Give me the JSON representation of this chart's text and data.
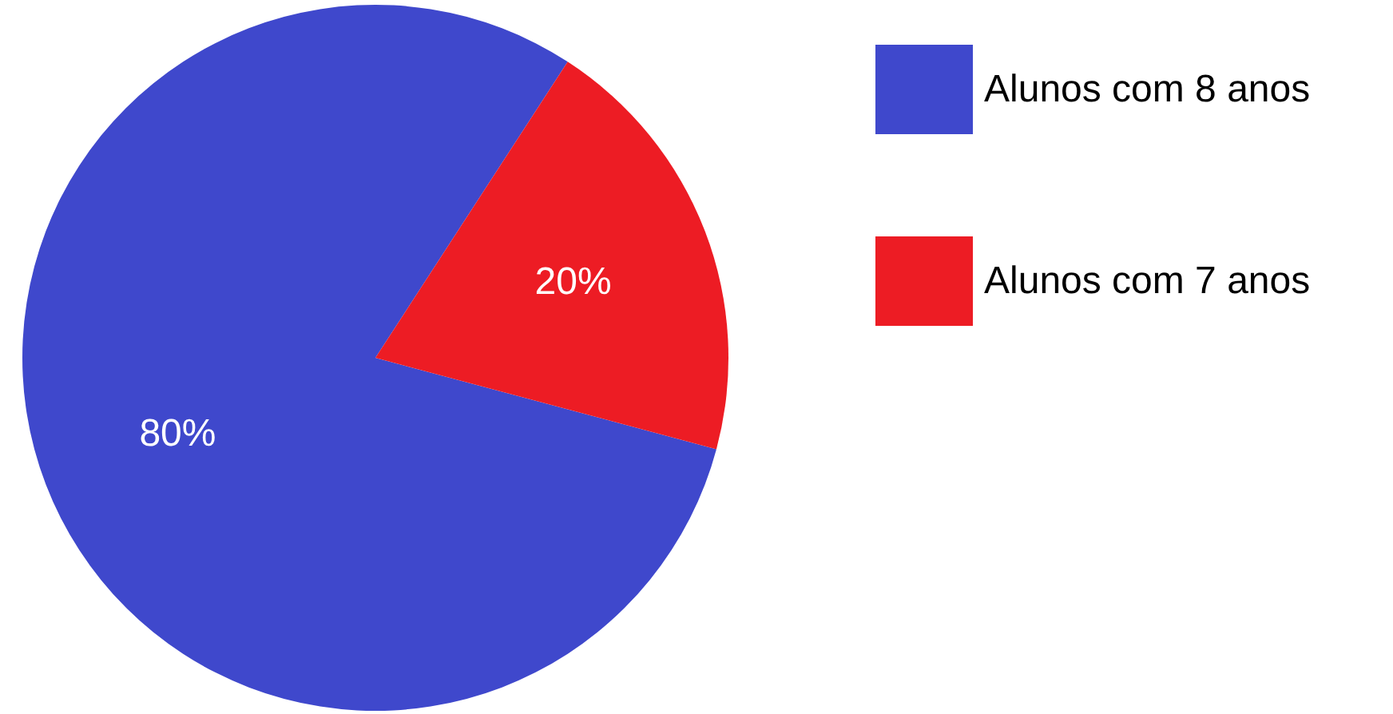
{
  "chart_data": {
    "type": "pie",
    "categories": [
      "Alunos com 8 anos",
      "Alunos com 7 anos"
    ],
    "values": [
      80,
      20
    ],
    "colors": [
      "#3f48cc",
      "#ed1c24"
    ],
    "value_labels": [
      "80%",
      "20%"
    ],
    "legend": "right"
  }
}
